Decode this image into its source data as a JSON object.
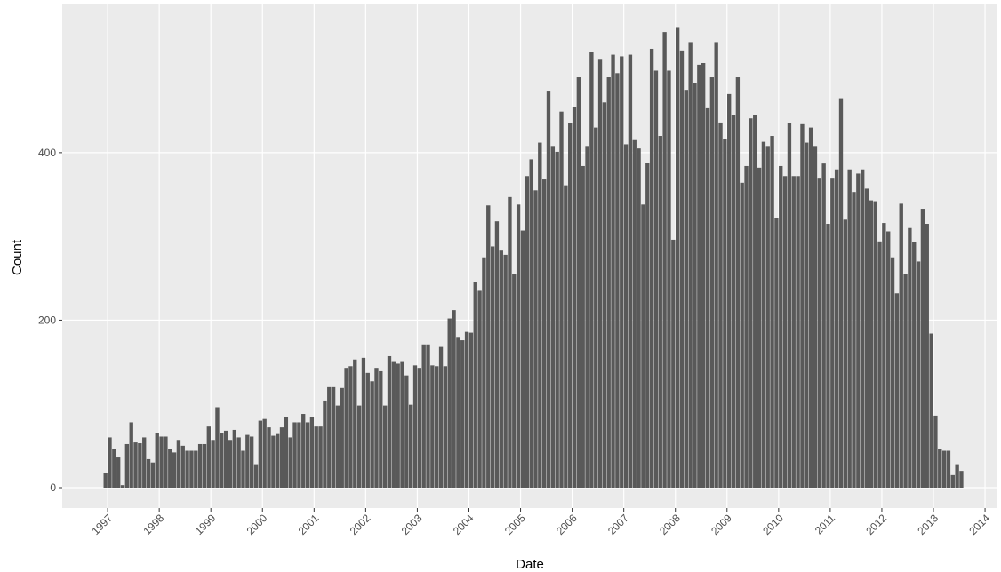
{
  "chart_data": {
    "type": "histogram",
    "xlabel": "Date",
    "ylabel": "Count",
    "color": "#595959",
    "grid": true,
    "bins": [
      1996.917,
      1997,
      1997.083,
      1997.167,
      1997.25,
      1997.333,
      1997.417,
      1997.5,
      1997.583,
      1997.667,
      1997.75,
      1997.833,
      1997.917,
      1998,
      1998.083,
      1998.167,
      1998.25,
      1998.333,
      1998.417,
      1998.5,
      1998.583,
      1998.667,
      1998.75,
      1998.833,
      1998.917,
      1999,
      1999.083,
      1999.167,
      1999.25,
      1999.333,
      1999.417,
      1999.5,
      1999.583,
      1999.667,
      1999.75,
      1999.833,
      1999.917,
      2000,
      2000.083,
      2000.167,
      2000.25,
      2000.333,
      2000.417,
      2000.5,
      2000.583,
      2000.667,
      2000.75,
      2000.833,
      2000.917,
      2001,
      2001.083,
      2001.167,
      2001.25,
      2001.333,
      2001.417,
      2001.5,
      2001.583,
      2001.667,
      2001.75,
      2001.833,
      2001.917,
      2002,
      2002.083,
      2002.167,
      2002.25,
      2002.333,
      2002.417,
      2002.5,
      2002.583,
      2002.667,
      2002.75,
      2002.833,
      2002.917,
      2003,
      2003.083,
      2003.167,
      2003.25,
      2003.333,
      2003.417,
      2003.5,
      2003.583,
      2003.667,
      2003.75,
      2003.833,
      2003.917,
      2004,
      2004.083,
      2004.167,
      2004.25,
      2004.333,
      2004.417,
      2004.5,
      2004.583,
      2004.667,
      2004.75,
      2004.833,
      2004.917,
      2005,
      2005.083,
      2005.167,
      2005.25,
      2005.333,
      2005.417,
      2005.5,
      2005.583,
      2005.667,
      2005.75,
      2005.833,
      2005.917,
      2006,
      2006.083,
      2006.167,
      2006.25,
      2006.333,
      2006.417,
      2006.5,
      2006.583,
      2006.667,
      2006.75,
      2006.833,
      2006.917,
      2007,
      2007.083,
      2007.167,
      2007.25,
      2007.333,
      2007.417,
      2007.5,
      2007.583,
      2007.667,
      2007.75,
      2007.833,
      2007.917,
      2008,
      2008.083,
      2008.167,
      2008.25,
      2008.333,
      2008.417,
      2008.5,
      2008.583,
      2008.667,
      2008.75,
      2008.833,
      2008.917,
      2009,
      2009.083,
      2009.167,
      2009.25,
      2009.333,
      2009.417,
      2009.5,
      2009.583,
      2009.667,
      2009.75,
      2009.833,
      2009.917,
      2010,
      2010.083,
      2010.167,
      2010.25,
      2010.333,
      2010.417,
      2010.5,
      2010.583,
      2010.667,
      2010.75,
      2010.833,
      2010.917,
      2011,
      2011.083,
      2011.167,
      2011.25,
      2011.333,
      2011.417,
      2011.5,
      2011.583,
      2011.667,
      2011.75,
      2011.833,
      2011.917,
      2012,
      2012.083,
      2012.167,
      2012.25,
      2012.333,
      2012.417,
      2012.5,
      2012.583,
      2012.667,
      2012.75,
      2012.833,
      2012.917,
      2013,
      2013.083,
      2013.167,
      2013.25,
      2013.333,
      2013.417,
      2013.5,
      2013.583
    ],
    "values": [
      17,
      60,
      46,
      36,
      3,
      52,
      78,
      54,
      53,
      60,
      34,
      30,
      65,
      61,
      61,
      46,
      42,
      57,
      50,
      44,
      44,
      44,
      52,
      52,
      73,
      57,
      96,
      65,
      68,
      57,
      69,
      60,
      44,
      63,
      61,
      28,
      80,
      82,
      72,
      62,
      64,
      72,
      84,
      60,
      78,
      78,
      88,
      78,
      84,
      73,
      73,
      104,
      120,
      120,
      98,
      119,
      143,
      145,
      153,
      98,
      155,
      137,
      127,
      143,
      139,
      98,
      157,
      150,
      148,
      150,
      134,
      99,
      146,
      143,
      171,
      171,
      146,
      145,
      168,
      145,
      202,
      212,
      180,
      176,
      186,
      185,
      245,
      235,
      275,
      337,
      288,
      318,
      283,
      278,
      347,
      255,
      338,
      307,
      372,
      392,
      355,
      412,
      368,
      473,
      408,
      401,
      449,
      361,
      435,
      454,
      490,
      384,
      408,
      520,
      430,
      512,
      460,
      490,
      517,
      495,
      515,
      410,
      517,
      415,
      405,
      338,
      388,
      524,
      498,
      420,
      544,
      498,
      296,
      550,
      522,
      475,
      532,
      483,
      505,
      507,
      453,
      490,
      532,
      436,
      416,
      470,
      445,
      490,
      364,
      384,
      441,
      445,
      382,
      413,
      408,
      420,
      322,
      384,
      372,
      435,
      372,
      372,
      434,
      412,
      430,
      408,
      370,
      387,
      315,
      370,
      380,
      465,
      320,
      380,
      353,
      375,
      380,
      357,
      343,
      342,
      294,
      316,
      306,
      275,
      232,
      339,
      255,
      310,
      293,
      270,
      333,
      315,
      184,
      86,
      46,
      44,
      44,
      15,
      28,
      20
    ],
    "xlim": [
      1996.12,
      2014.24
    ],
    "xticks": [
      1997,
      1998,
      1999,
      2000,
      2001,
      2002,
      2003,
      2004,
      2005,
      2006,
      2007,
      2008,
      2009,
      2010,
      2011,
      2012,
      2013,
      2014
    ],
    "ylim": [
      -24.4,
      577
    ],
    "yticks": [
      0,
      200,
      400
    ]
  }
}
